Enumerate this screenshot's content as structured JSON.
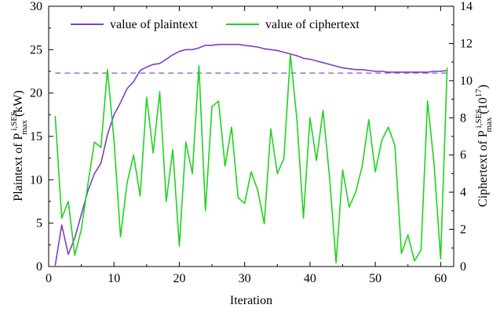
{
  "chart_data": {
    "type": "line",
    "xlabel": "Iteration",
    "ylabel_left": {
      "prefix": "Plaintext of P",
      "sup": "i,SES",
      "sub": "max",
      "unit": " (kW)"
    },
    "ylabel_right": {
      "prefix": "Ciphertext of P",
      "sup": "i,SES",
      "sub": "max",
      "unit_open": " (10",
      "unit_exp": "17",
      "unit_close": ")"
    },
    "xlim": [
      0,
      62
    ],
    "ylim_left": [
      0,
      30
    ],
    "ylim_right": [
      0,
      14
    ],
    "x_ticks": [
      0,
      10,
      20,
      30,
      40,
      50,
      60
    ],
    "y_left_ticks": [
      0,
      5,
      10,
      15,
      20,
      25,
      30
    ],
    "y_right_ticks": [
      0,
      2,
      4,
      6,
      8,
      10,
      12,
      14
    ],
    "reference_line": {
      "axis": "left",
      "y": 22.3,
      "style": "dashed",
      "color": "#9b6fd0"
    },
    "legend_position": "top",
    "series": [
      {
        "name": "value of plaintext",
        "axis": "left",
        "color": "#7b3fc4",
        "x": [
          1,
          2,
          3,
          4,
          5,
          6,
          7,
          8,
          9,
          10,
          11,
          12,
          13,
          14,
          15,
          16,
          17,
          18,
          19,
          20,
          21,
          22,
          23,
          24,
          25,
          26,
          27,
          28,
          29,
          30,
          31,
          32,
          33,
          34,
          35,
          36,
          37,
          38,
          39,
          40,
          41,
          42,
          43,
          44,
          45,
          46,
          47,
          48,
          49,
          50,
          51,
          52,
          53,
          54,
          55,
          56,
          57,
          58,
          59,
          60,
          61
        ],
        "y": [
          0.1,
          4.8,
          1.4,
          3.3,
          6.0,
          8.7,
          10.7,
          11.9,
          15.2,
          17.5,
          18.9,
          20.5,
          21.3,
          22.6,
          23.0,
          23.3,
          23.4,
          23.9,
          24.4,
          24.8,
          25.0,
          25.0,
          25.2,
          25.5,
          25.5,
          25.6,
          25.6,
          25.6,
          25.6,
          25.5,
          25.4,
          25.3,
          25.1,
          25.0,
          24.9,
          24.7,
          24.5,
          24.3,
          24.0,
          23.9,
          23.7,
          23.5,
          23.3,
          23.1,
          22.9,
          22.8,
          22.7,
          22.7,
          22.6,
          22.5,
          22.5,
          22.4,
          22.4,
          22.4,
          22.4,
          22.4,
          22.4,
          22.4,
          22.5,
          22.5,
          22.6
        ]
      },
      {
        "name": "value of ciphertext",
        "axis": "right",
        "color": "#1ed41e",
        "x": [
          1,
          2,
          3,
          4,
          5,
          6,
          7,
          8,
          9,
          10,
          11,
          12,
          13,
          14,
          15,
          16,
          17,
          18,
          19,
          20,
          21,
          22,
          23,
          24,
          25,
          26,
          27,
          28,
          29,
          30,
          31,
          32,
          33,
          34,
          35,
          36,
          37,
          38,
          39,
          40,
          41,
          42,
          43,
          44,
          45,
          46,
          47,
          48,
          49,
          50,
          51,
          52,
          53,
          54,
          55,
          56,
          57,
          58,
          59,
          60,
          61
        ],
        "y": [
          8.1,
          2.6,
          3.5,
          0.6,
          2.0,
          4.4,
          6.7,
          6.4,
          10.6,
          6.8,
          1.6,
          4.5,
          6.0,
          3.8,
          9.1,
          6.1,
          9.4,
          3.5,
          6.3,
          1.1,
          6.7,
          5.0,
          10.8,
          3.0,
          8.6,
          8.9,
          5.4,
          7.5,
          3.7,
          3.4,
          5.1,
          4.1,
          2.3,
          7.4,
          5.0,
          5.8,
          11.4,
          7.9,
          2.6,
          8.0,
          5.7,
          8.4,
          4.8,
          0.2,
          5.2,
          3.2,
          4.0,
          5.4,
          7.9,
          5.1,
          6.8,
          7.5,
          6.5,
          0.7,
          1.7,
          0.3,
          0.9,
          8.9,
          5.5,
          0.4,
          10.7
        ]
      }
    ]
  }
}
